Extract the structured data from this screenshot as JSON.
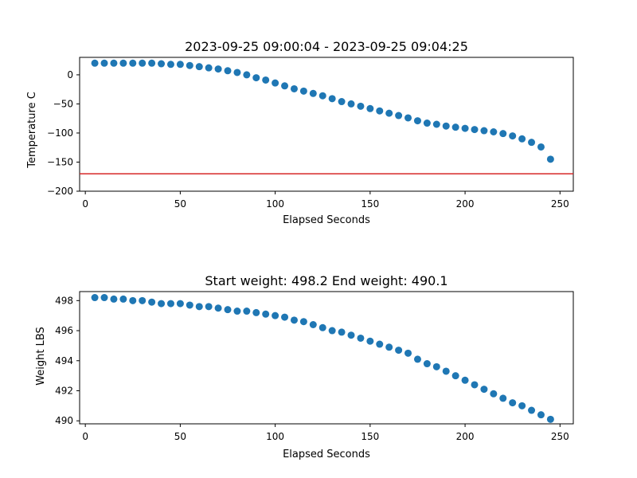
{
  "colors": {
    "marker": "#1f77b4",
    "threshold_line": "#d62728",
    "axes": "#000000"
  },
  "chart_data": [
    {
      "type": "scatter",
      "title": "2023-09-25 09:00:04 - 2023-09-25 09:04:25",
      "xlabel": "Elapsed Seconds",
      "ylabel": "Temperature C",
      "xlim": [
        -3,
        257
      ],
      "ylim": [
        -200,
        30
      ],
      "xticks": [
        0,
        50,
        100,
        150,
        200,
        250
      ],
      "yticks": [
        0,
        -50,
        -100,
        -150,
        -200
      ],
      "ytick_labels": [
        "0",
        "−50",
        "−100",
        "−150",
        "−200"
      ],
      "grid": false,
      "reference_line": {
        "orientation": "horizontal",
        "y": -170
      },
      "series": [
        {
          "x": [
            5,
            10,
            15,
            20,
            25,
            30,
            35,
            40,
            45,
            50,
            55,
            60,
            65,
            70,
            75,
            80,
            85,
            90,
            95,
            100,
            105,
            110,
            115,
            120,
            125,
            130,
            135,
            140,
            145,
            150,
            155,
            160,
            165,
            170,
            175,
            180,
            185,
            190,
            195,
            200,
            205,
            210,
            215,
            220,
            225,
            230,
            235,
            240,
            245
          ],
          "y": [
            20,
            20,
            20,
            20,
            20,
            20,
            20,
            19,
            18,
            18,
            16,
            14,
            12,
            10,
            7,
            4,
            0,
            -5,
            -9,
            -14,
            -19,
            -24,
            -28,
            -32,
            -36,
            -41,
            -46,
            -50,
            -54,
            -58,
            -62,
            -66,
            -70,
            -74,
            -79,
            -83,
            -85,
            -88,
            -90,
            -92,
            -94,
            -96,
            -98,
            -101,
            -105,
            -110,
            -116,
            -124,
            -145
          ]
        }
      ]
    },
    {
      "type": "scatter",
      "title": "Start weight: 498.2 End weight: 490.1",
      "xlabel": "Elapsed Seconds",
      "ylabel": "Weight LBS",
      "xlim": [
        -3,
        257
      ],
      "ylim": [
        489.8,
        498.6
      ],
      "xticks": [
        0,
        50,
        100,
        150,
        200,
        250
      ],
      "yticks": [
        490,
        492,
        494,
        496,
        498
      ],
      "ytick_labels": [
        "490",
        "492",
        "494",
        "496",
        "498"
      ],
      "grid": false,
      "series": [
        {
          "x": [
            5,
            10,
            15,
            20,
            25,
            30,
            35,
            40,
            45,
            50,
            55,
            60,
            65,
            70,
            75,
            80,
            85,
            90,
            95,
            100,
            105,
            110,
            115,
            120,
            125,
            130,
            135,
            140,
            145,
            150,
            155,
            160,
            165,
            170,
            175,
            180,
            185,
            190,
            195,
            200,
            205,
            210,
            215,
            220,
            225,
            230,
            235,
            240,
            245
          ],
          "y": [
            498.2,
            498.2,
            498.1,
            498.1,
            498.0,
            498.0,
            497.9,
            497.8,
            497.8,
            497.8,
            497.7,
            497.6,
            497.6,
            497.5,
            497.4,
            497.3,
            497.3,
            497.2,
            497.1,
            497.0,
            496.9,
            496.7,
            496.6,
            496.4,
            496.2,
            496.0,
            495.9,
            495.7,
            495.5,
            495.3,
            495.1,
            494.9,
            494.7,
            494.5,
            494.1,
            493.8,
            493.6,
            493.3,
            493.0,
            492.7,
            492.4,
            492.1,
            491.8,
            491.5,
            491.2,
            491.0,
            490.7,
            490.4,
            490.1
          ]
        }
      ]
    }
  ]
}
